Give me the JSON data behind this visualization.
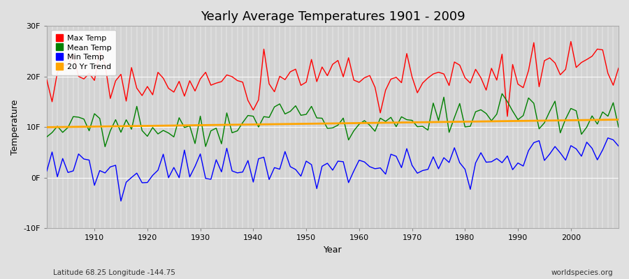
{
  "title": "Yearly Average Temperatures 1901 - 2009",
  "xlabel": "Year",
  "ylabel": "Temperature",
  "lat_lon_label": "Latitude 68.25 Longitude -144.75",
  "watermark": "worldspecies.org",
  "year_start": 1901,
  "year_end": 2009,
  "ylim": [
    -10,
    30
  ],
  "yticks": [
    -10,
    0,
    10,
    20,
    30
  ],
  "ytick_labels": [
    "-10F",
    "0F",
    "10F",
    "20F",
    "30F"
  ],
  "xticks": [
    1910,
    1920,
    1930,
    1940,
    1950,
    1960,
    1970,
    1980,
    1990,
    2000
  ],
  "legend_entries": [
    "Max Temp",
    "Mean Temp",
    "Min Temp",
    "20 Yr Trend"
  ],
  "legend_colors": [
    "#ff0000",
    "#008000",
    "#0000ff",
    "#ffa500"
  ],
  "line_colors": {
    "max": "#ff0000",
    "mean": "#008000",
    "min": "#0000ff",
    "trend": "#ffa500"
  },
  "bg_color": "#e0e0e0",
  "plot_bg_color": "#d3d3d3",
  "grid_color": "#ffffff",
  "title_fontsize": 13,
  "label_fontsize": 9,
  "tick_fontsize": 8
}
